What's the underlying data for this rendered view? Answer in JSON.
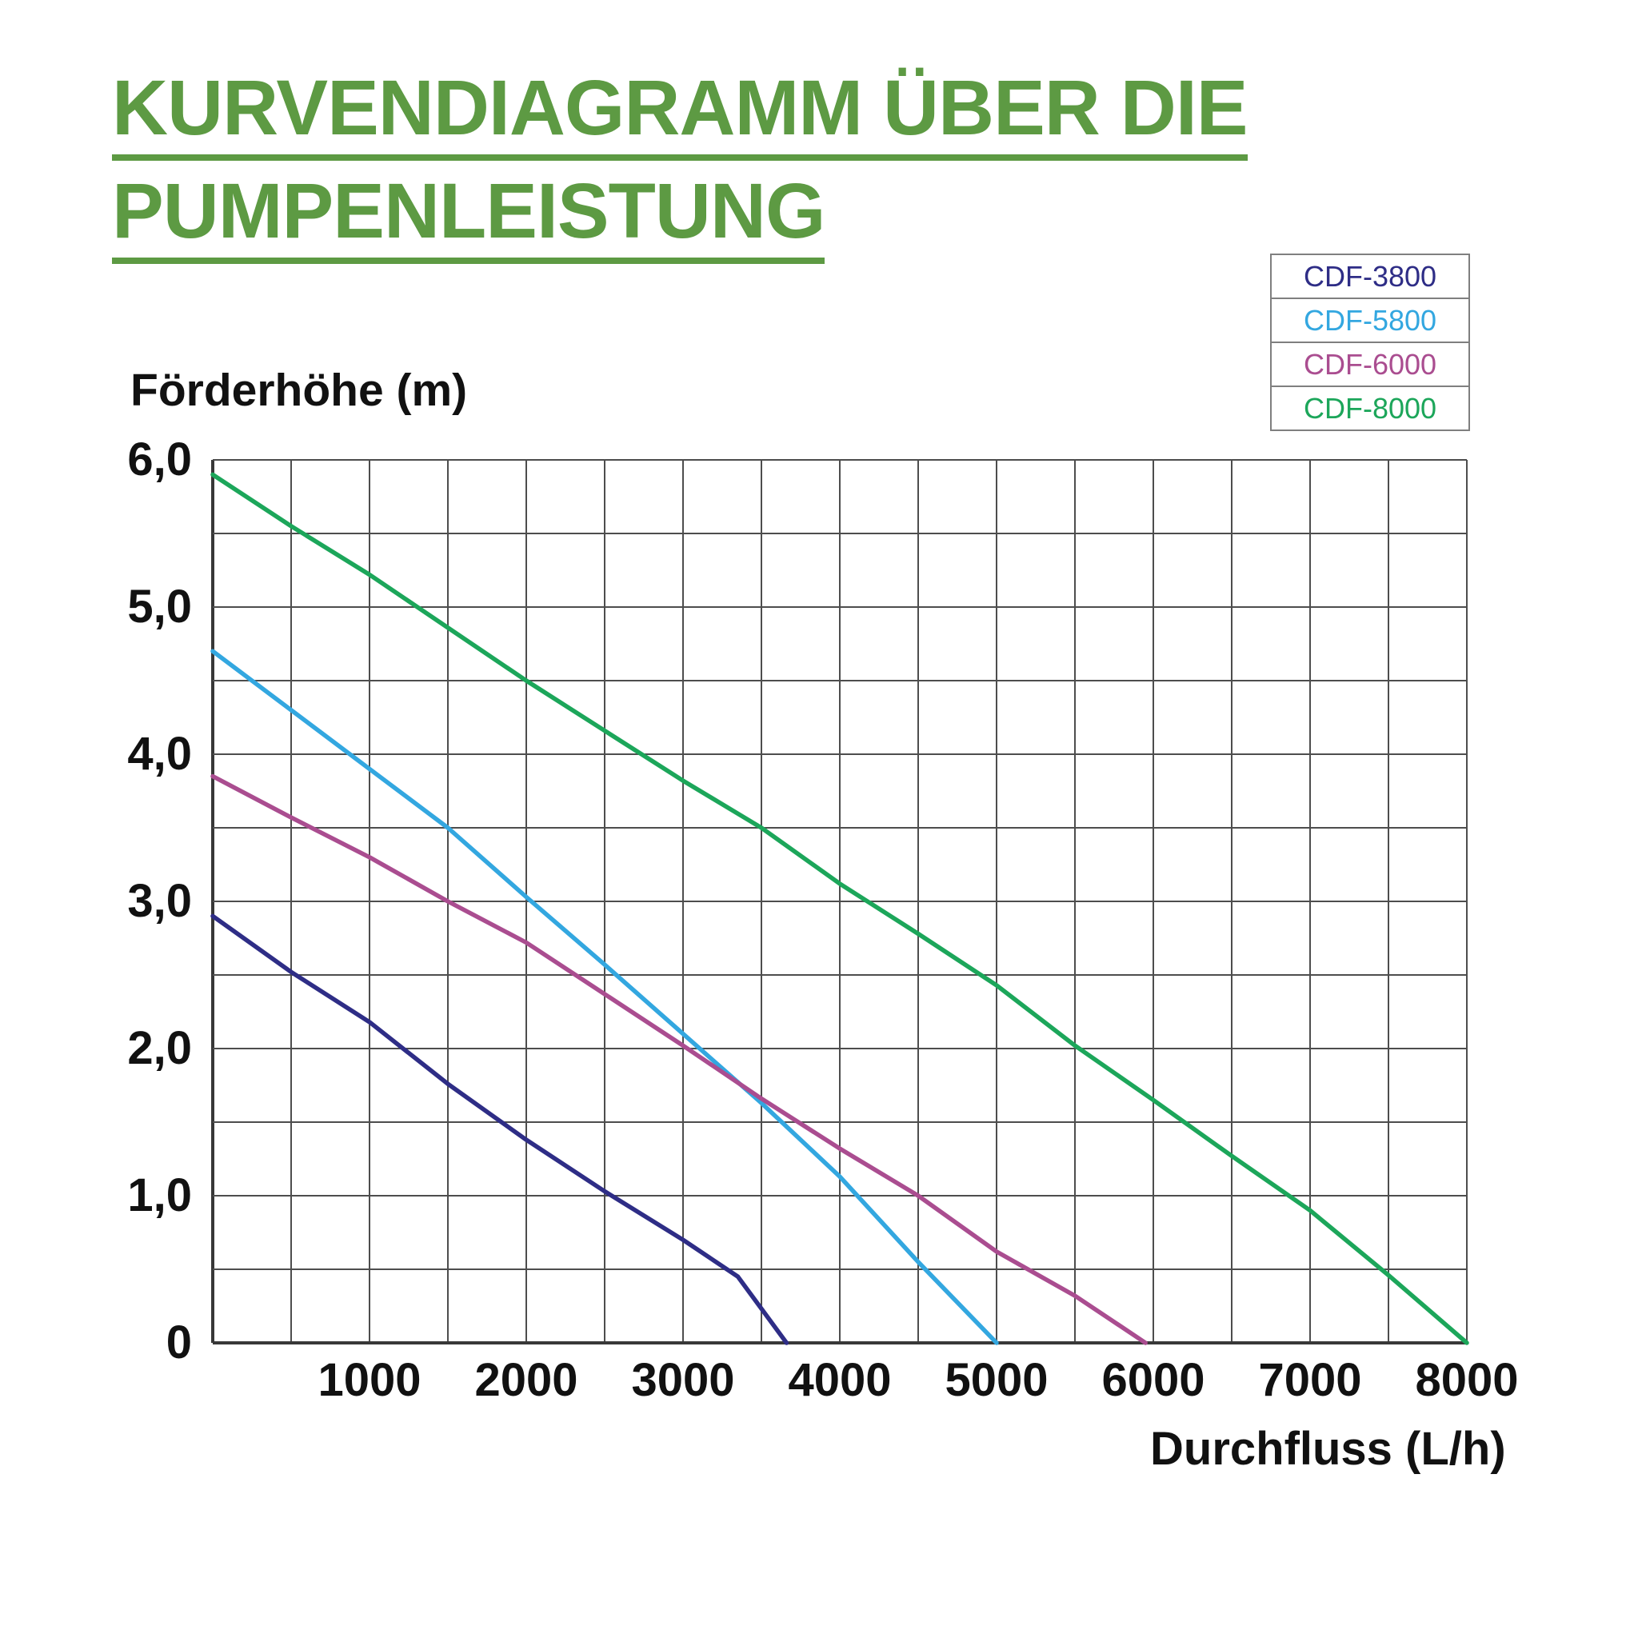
{
  "title": {
    "line1": "KURVENDIAGRAMM ÜBER DIE",
    "line2": "PUMPENLEISTUNG"
  },
  "colors": {
    "title_green": "#5d9a43",
    "text": "#111111",
    "grid": "#4d4d4d",
    "axis": "#383838",
    "legend_border": "#7f7f7f",
    "background": "#ffffff"
  },
  "chart_data": {
    "type": "line",
    "title": "KURVENDIAGRAMM ÜBER DIE PUMPENLEISTUNG",
    "xlabel": "Durchfluss (L/h)",
    "ylabel": "Förderhöhe (m)",
    "xlim": [
      0,
      8000
    ],
    "ylim": [
      0,
      6
    ],
    "x_grid_step": 500,
    "y_grid_step": 0.5,
    "grid": true,
    "legend_position": "top-right",
    "x_ticks": [
      {
        "value": 1000,
        "label": "1000"
      },
      {
        "value": 2000,
        "label": "2000"
      },
      {
        "value": 3000,
        "label": "3000"
      },
      {
        "value": 4000,
        "label": "4000"
      },
      {
        "value": 5000,
        "label": "5000"
      },
      {
        "value": 6000,
        "label": "6000"
      },
      {
        "value": 7000,
        "label": "7000"
      },
      {
        "value": 8000,
        "label": "8000"
      }
    ],
    "y_ticks": [
      {
        "value": 6,
        "label": "6,0"
      },
      {
        "value": 5,
        "label": "5,0"
      },
      {
        "value": 4,
        "label": "4,0"
      },
      {
        "value": 3,
        "label": "3,0"
      },
      {
        "value": 2,
        "label": "2,0"
      },
      {
        "value": 1,
        "label": "1,0"
      },
      {
        "value": 0,
        "label": "0"
      }
    ],
    "series": [
      {
        "name": "CDF-3800",
        "color": "#2e2d86",
        "points": [
          [
            0,
            2.9
          ],
          [
            500,
            2.52
          ],
          [
            1000,
            2.18
          ],
          [
            1500,
            1.76
          ],
          [
            2000,
            1.38
          ],
          [
            2500,
            1.03
          ],
          [
            3000,
            0.7
          ],
          [
            3350,
            0.45
          ],
          [
            3660,
            0
          ]
        ]
      },
      {
        "name": "CDF-5800",
        "color": "#33a7e0",
        "points": [
          [
            0,
            4.7
          ],
          [
            500,
            4.3
          ],
          [
            1000,
            3.9
          ],
          [
            1500,
            3.5
          ],
          [
            2000,
            3.03
          ],
          [
            2500,
            2.57
          ],
          [
            3000,
            2.1
          ],
          [
            3500,
            1.63
          ],
          [
            4000,
            1.13
          ],
          [
            4500,
            0.55
          ],
          [
            5000,
            0
          ]
        ]
      },
      {
        "name": "CDF-6000",
        "color": "#aa4d90",
        "points": [
          [
            0,
            3.85
          ],
          [
            500,
            3.57
          ],
          [
            1000,
            3.3
          ],
          [
            1500,
            3.0
          ],
          [
            2000,
            2.72
          ],
          [
            2500,
            2.37
          ],
          [
            3000,
            2.02
          ],
          [
            3500,
            1.66
          ],
          [
            4000,
            1.32
          ],
          [
            4500,
            1.0
          ],
          [
            5000,
            0.62
          ],
          [
            5500,
            0.32
          ],
          [
            5950,
            0
          ]
        ]
      },
      {
        "name": "CDF-8000",
        "color": "#1ca65a",
        "points": [
          [
            0,
            5.9
          ],
          [
            500,
            5.55
          ],
          [
            1000,
            5.22
          ],
          [
            1500,
            4.86
          ],
          [
            2000,
            4.5
          ],
          [
            2500,
            4.16
          ],
          [
            3000,
            3.82
          ],
          [
            3500,
            3.5
          ],
          [
            4000,
            3.12
          ],
          [
            4500,
            2.78
          ],
          [
            5000,
            2.43
          ],
          [
            5500,
            2.02
          ],
          [
            6000,
            1.65
          ],
          [
            6500,
            1.27
          ],
          [
            7000,
            0.9
          ],
          [
            7500,
            0.46
          ],
          [
            8000,
            0
          ]
        ]
      }
    ]
  }
}
